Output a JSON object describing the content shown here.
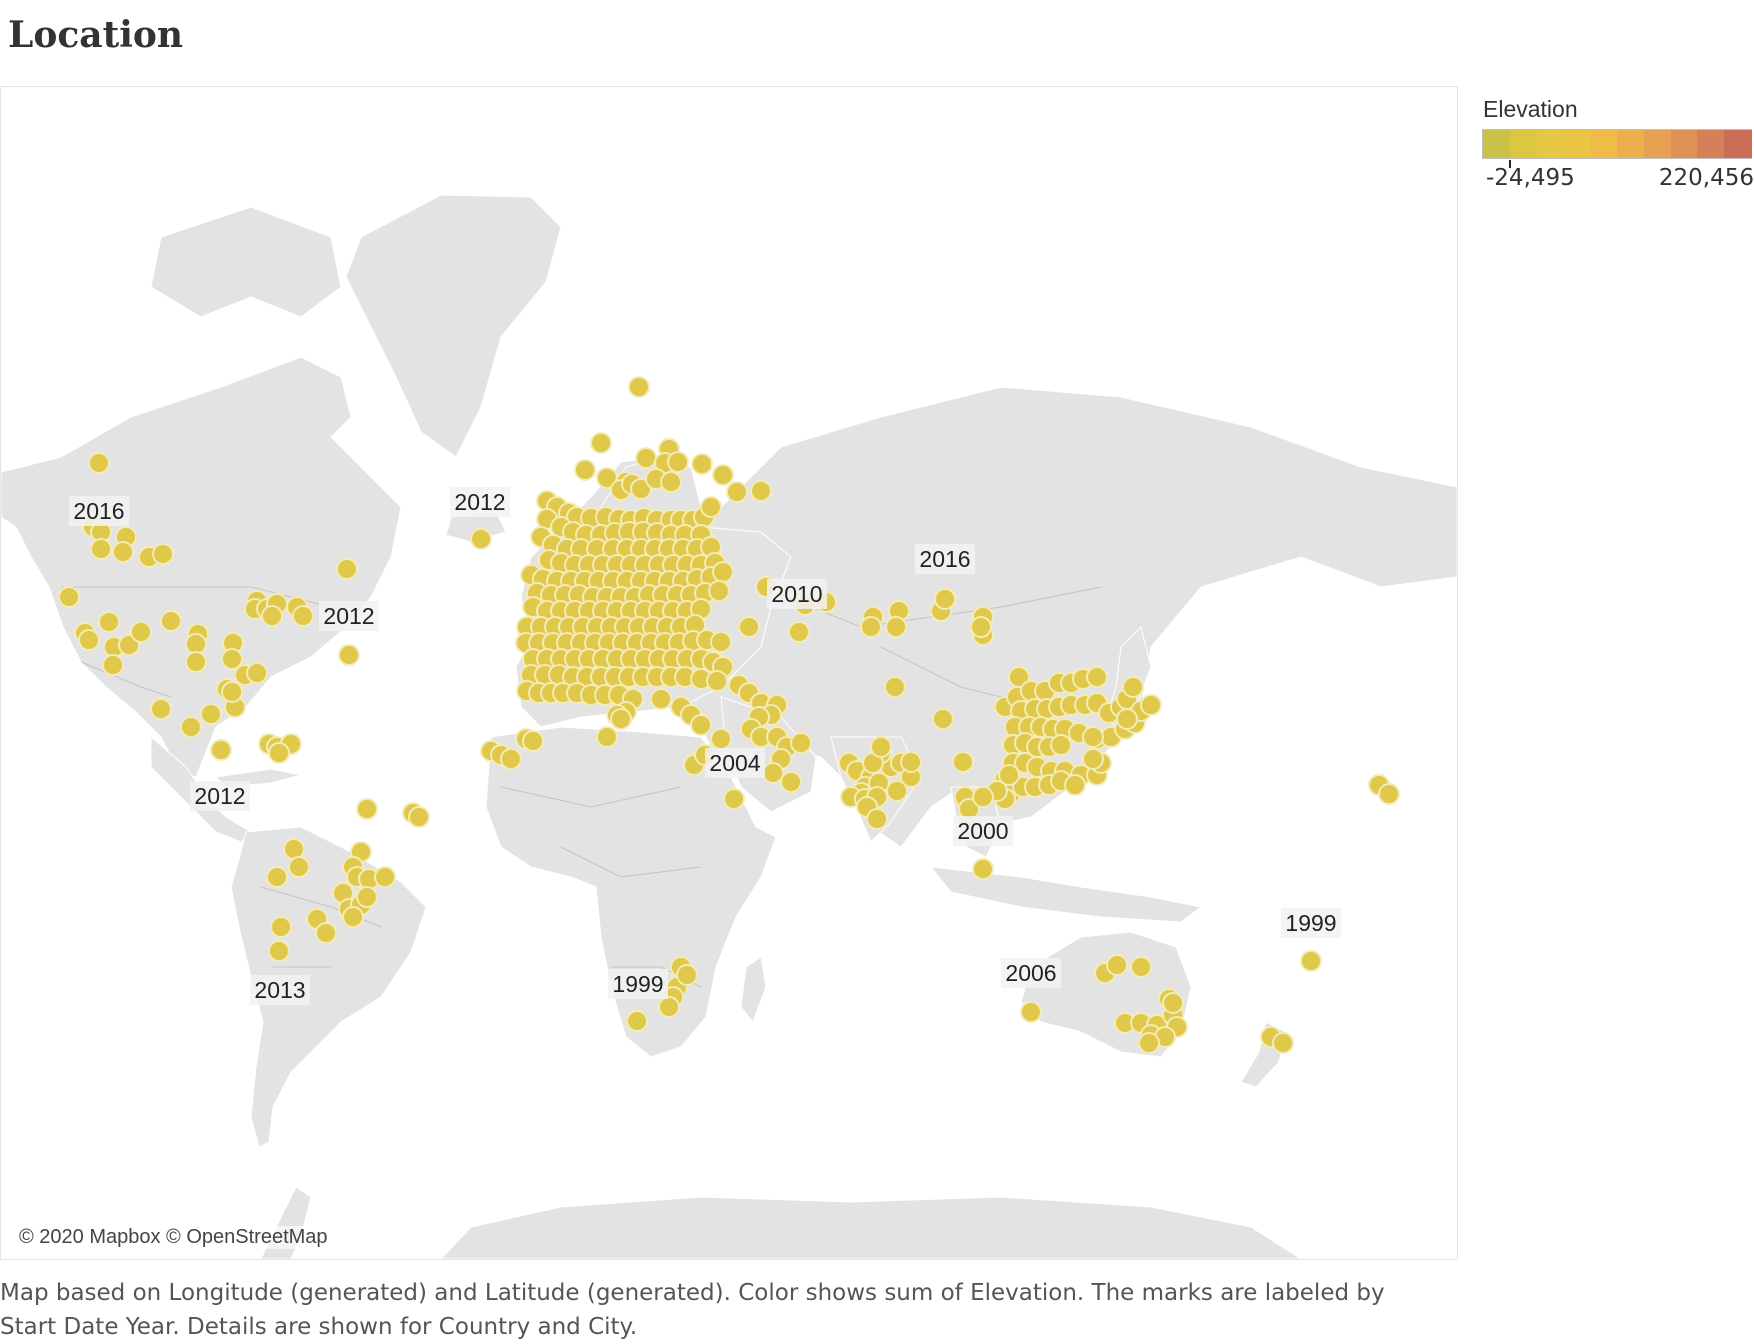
{
  "title": "Location",
  "attribution": "© 2020 Mapbox © OpenStreetMap",
  "legend": {
    "title": "Elevation",
    "min_label": "-24,495",
    "max_label": "220,456",
    "colors": [
      "#c9c14a",
      "#dcc743",
      "#e6c842",
      "#ebc444",
      "#eebd48",
      "#ebb04c",
      "#e6a152",
      "#df9156",
      "#d6805a",
      "#cc6b58"
    ]
  },
  "caption": "Map based on Longitude (generated) and Latitude (generated).  Color shows sum of Elevation.  The marks are labeled by Start Date Year.  Details are shown for Country and City.",
  "colors": {
    "land": "#e3e3e3",
    "marker": "#e0c84a",
    "marker_stroke": "#f3ebb8",
    "border": "#b5b5b5"
  },
  "year_labels": [
    {
      "text": "2016",
      "near": "Western Canada"
    },
    {
      "text": "2012",
      "near": "Iceland"
    },
    {
      "text": "2012",
      "near": "Eastern Canada"
    },
    {
      "text": "2016",
      "near": "Mongolia"
    },
    {
      "text": "2010",
      "near": "Kazakhstan"
    },
    {
      "text": "2004",
      "near": "East Africa"
    },
    {
      "text": "2000",
      "near": "Indonesia"
    },
    {
      "text": "2012",
      "near": "Central America"
    },
    {
      "text": "2013",
      "near": "Argentina"
    },
    {
      "text": "1999",
      "near": "South Africa"
    },
    {
      "text": "2006",
      "near": "Western Australia"
    },
    {
      "text": "1999",
      "near": "New Zealand"
    }
  ]
}
